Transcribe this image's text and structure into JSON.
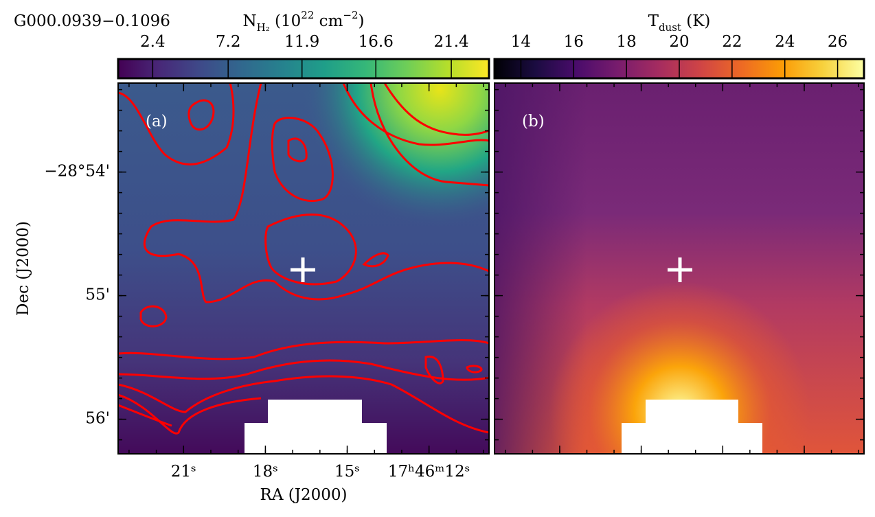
{
  "chart_data": [
    {
      "type": "heatmap",
      "title": "G000.0939−0.1096",
      "panel_label": "(a)",
      "colormap": "viridis",
      "colorbar": {
        "label": [
          {
            "text": "N",
            "shift": "none"
          },
          {
            "text": "H₂",
            "shift": "sub"
          },
          {
            "text": " (10",
            "shift": "none"
          },
          {
            "text": "22",
            "shift": "super"
          },
          {
            "text": " cm",
            "shift": "none"
          },
          {
            "text": "−2",
            "shift": "super"
          },
          {
            "text": ")",
            "shift": "none"
          }
        ],
        "clim": [
          0.2,
          23.8
        ],
        "ticks": [
          2.4,
          7.2,
          11.9,
          16.6,
          21.4
        ]
      },
      "xlabel": "RA (J2000)",
      "ylabel": "Dec (J2000)",
      "xlim": [
        23.4,
        9.8
      ],
      "xticks": [
        {
          "value": 21,
          "label": "21ˢ"
        },
        {
          "value": 18,
          "label": "18ˢ"
        },
        {
          "value": 15,
          "label": "15ˢ"
        },
        {
          "value": 12,
          "label": "17ʰ46ᵐ12ˢ"
        }
      ],
      "ylim": [
        56.28,
        53.28
      ],
      "yticks": [
        {
          "value": 54,
          "label": "−28°54'"
        },
        {
          "value": 55,
          "label": "55'"
        },
        {
          "value": 56,
          "label": "56'"
        }
      ],
      "contour_color": "#ff0000"
    },
    {
      "type": "heatmap",
      "panel_label": "(b)",
      "colormap": "inferno",
      "colorbar": {
        "label": [
          {
            "text": "T",
            "shift": "none"
          },
          {
            "text": "dust",
            "shift": "sub"
          },
          {
            "text": " (K)",
            "shift": "none"
          }
        ],
        "clim": [
          13,
          27
        ],
        "ticks": [
          14,
          16,
          18,
          20,
          22,
          24,
          26
        ]
      }
    }
  ]
}
